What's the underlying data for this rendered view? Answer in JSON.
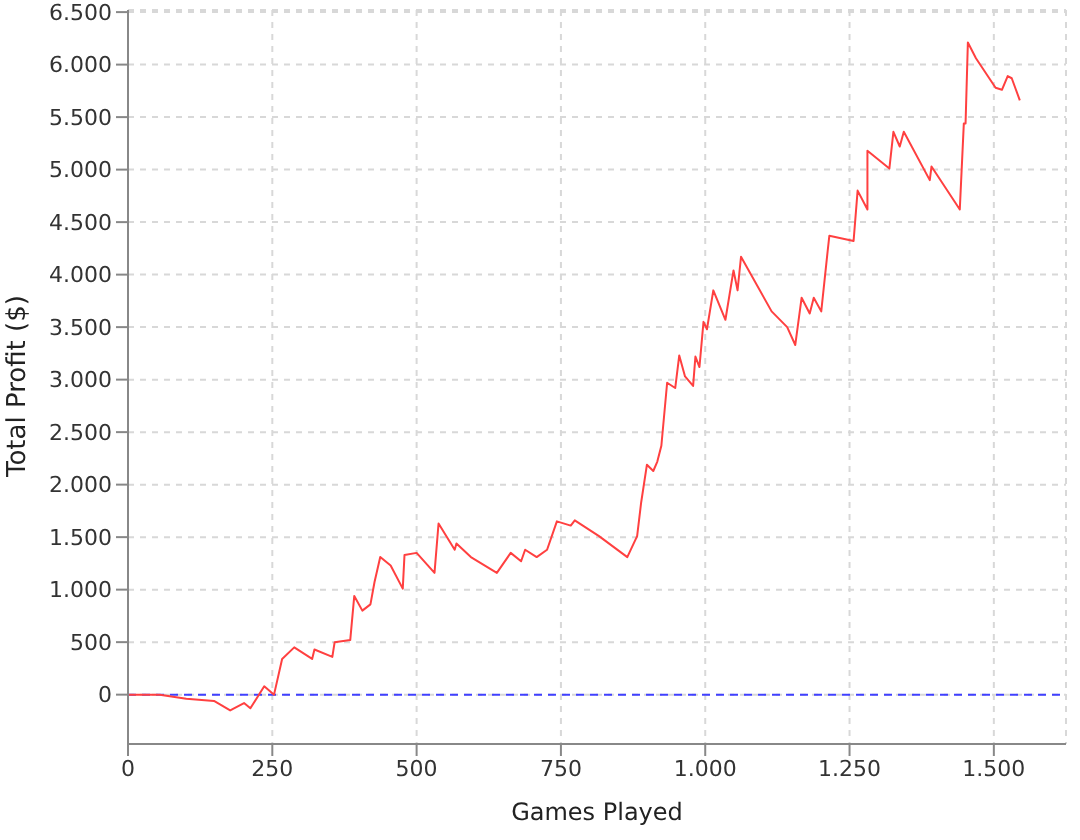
{
  "chart_data": {
    "type": "line",
    "xlabel": "Games Played",
    "ylabel": "Total Profit ($)",
    "x": [
      0,
      55,
      101,
      149,
      177,
      201,
      212,
      236,
      253,
      267,
      288,
      319,
      323,
      354,
      358,
      385,
      392,
      406,
      420,
      427,
      437,
      455,
      476,
      479,
      500,
      531,
      538,
      566,
      569,
      594,
      639,
      663,
      681,
      688,
      708,
      726,
      743,
      767,
      774,
      816,
      865,
      882,
      889,
      899,
      910,
      917,
      924,
      934,
      948,
      955,
      965,
      979,
      983,
      990,
      997,
      1003,
      1014,
      1035,
      1049,
      1056,
      1062,
      1115,
      1142,
      1156,
      1167,
      1181,
      1188,
      1201,
      1212,
      1215,
      1257,
      1264,
      1281,
      1281,
      1319,
      1326,
      1337,
      1344,
      1389,
      1392,
      1441,
      1448,
      1451,
      1455,
      1469,
      1503,
      1514,
      1524,
      1531,
      1545
    ],
    "series": [
      {
        "color": "#ff4040",
        "values": [
          0,
          0,
          -40,
          -60,
          -150,
          -80,
          -130,
          80,
          0,
          340,
          450,
          340,
          430,
          360,
          500,
          520,
          940,
          800,
          860,
          1070,
          1310,
          1230,
          1010,
          1330,
          1350,
          1160,
          1630,
          1380,
          1440,
          1310,
          1160,
          1350,
          1270,
          1380,
          1310,
          1380,
          1650,
          1610,
          1660,
          1510,
          1310,
          1510,
          1830,
          2190,
          2130,
          2220,
          2370,
          2970,
          2920,
          3230,
          3030,
          2940,
          3220,
          3120,
          3550,
          3480,
          3850,
          3570,
          4040,
          3850,
          4170,
          3650,
          3500,
          3330,
          3780,
          3630,
          3780,
          3650,
          4220,
          4370,
          4320,
          4800,
          4620,
          5180,
          5010,
          5360,
          5220,
          5360,
          4900,
          5030,
          4620,
          5440,
          5440,
          6210,
          6060,
          5780,
          5760,
          5890,
          5870,
          5660
        ]
      }
    ],
    "xlim": [
      0,
      1625
    ],
    "ylim": [
      -470,
      6520
    ],
    "xticks": [
      0,
      250,
      500,
      750,
      {
        "value": 1000,
        "label": "1.000"
      },
      {
        "value": 1250,
        "label": "1.250"
      },
      {
        "value": 1500,
        "label": "1.500"
      }
    ],
    "yticks": [
      0,
      500,
      {
        "value": 1000,
        "label": "1.000"
      },
      {
        "value": 1500,
        "label": "1.500"
      },
      {
        "value": 2000,
        "label": "2.000"
      },
      {
        "value": 2500,
        "label": "2.500"
      },
      {
        "value": 3000,
        "label": "3.000"
      },
      {
        "value": 3500,
        "label": "3.500"
      },
      {
        "value": 4000,
        "label": "4.000"
      },
      {
        "value": 4500,
        "label": "4.500"
      },
      {
        "value": 5000,
        "label": "5.000"
      },
      {
        "value": 5500,
        "label": "5.500"
      },
      {
        "value": 6000,
        "label": "6.000"
      },
      {
        "value": 6500,
        "label": "6.500"
      }
    ],
    "ref_lines": [
      {
        "axis": "y",
        "value": 0,
        "color": "#4040ff",
        "line_style": "dashed"
      }
    ],
    "grid": true,
    "legend": false,
    "marker": "none",
    "line_style": "solid"
  }
}
